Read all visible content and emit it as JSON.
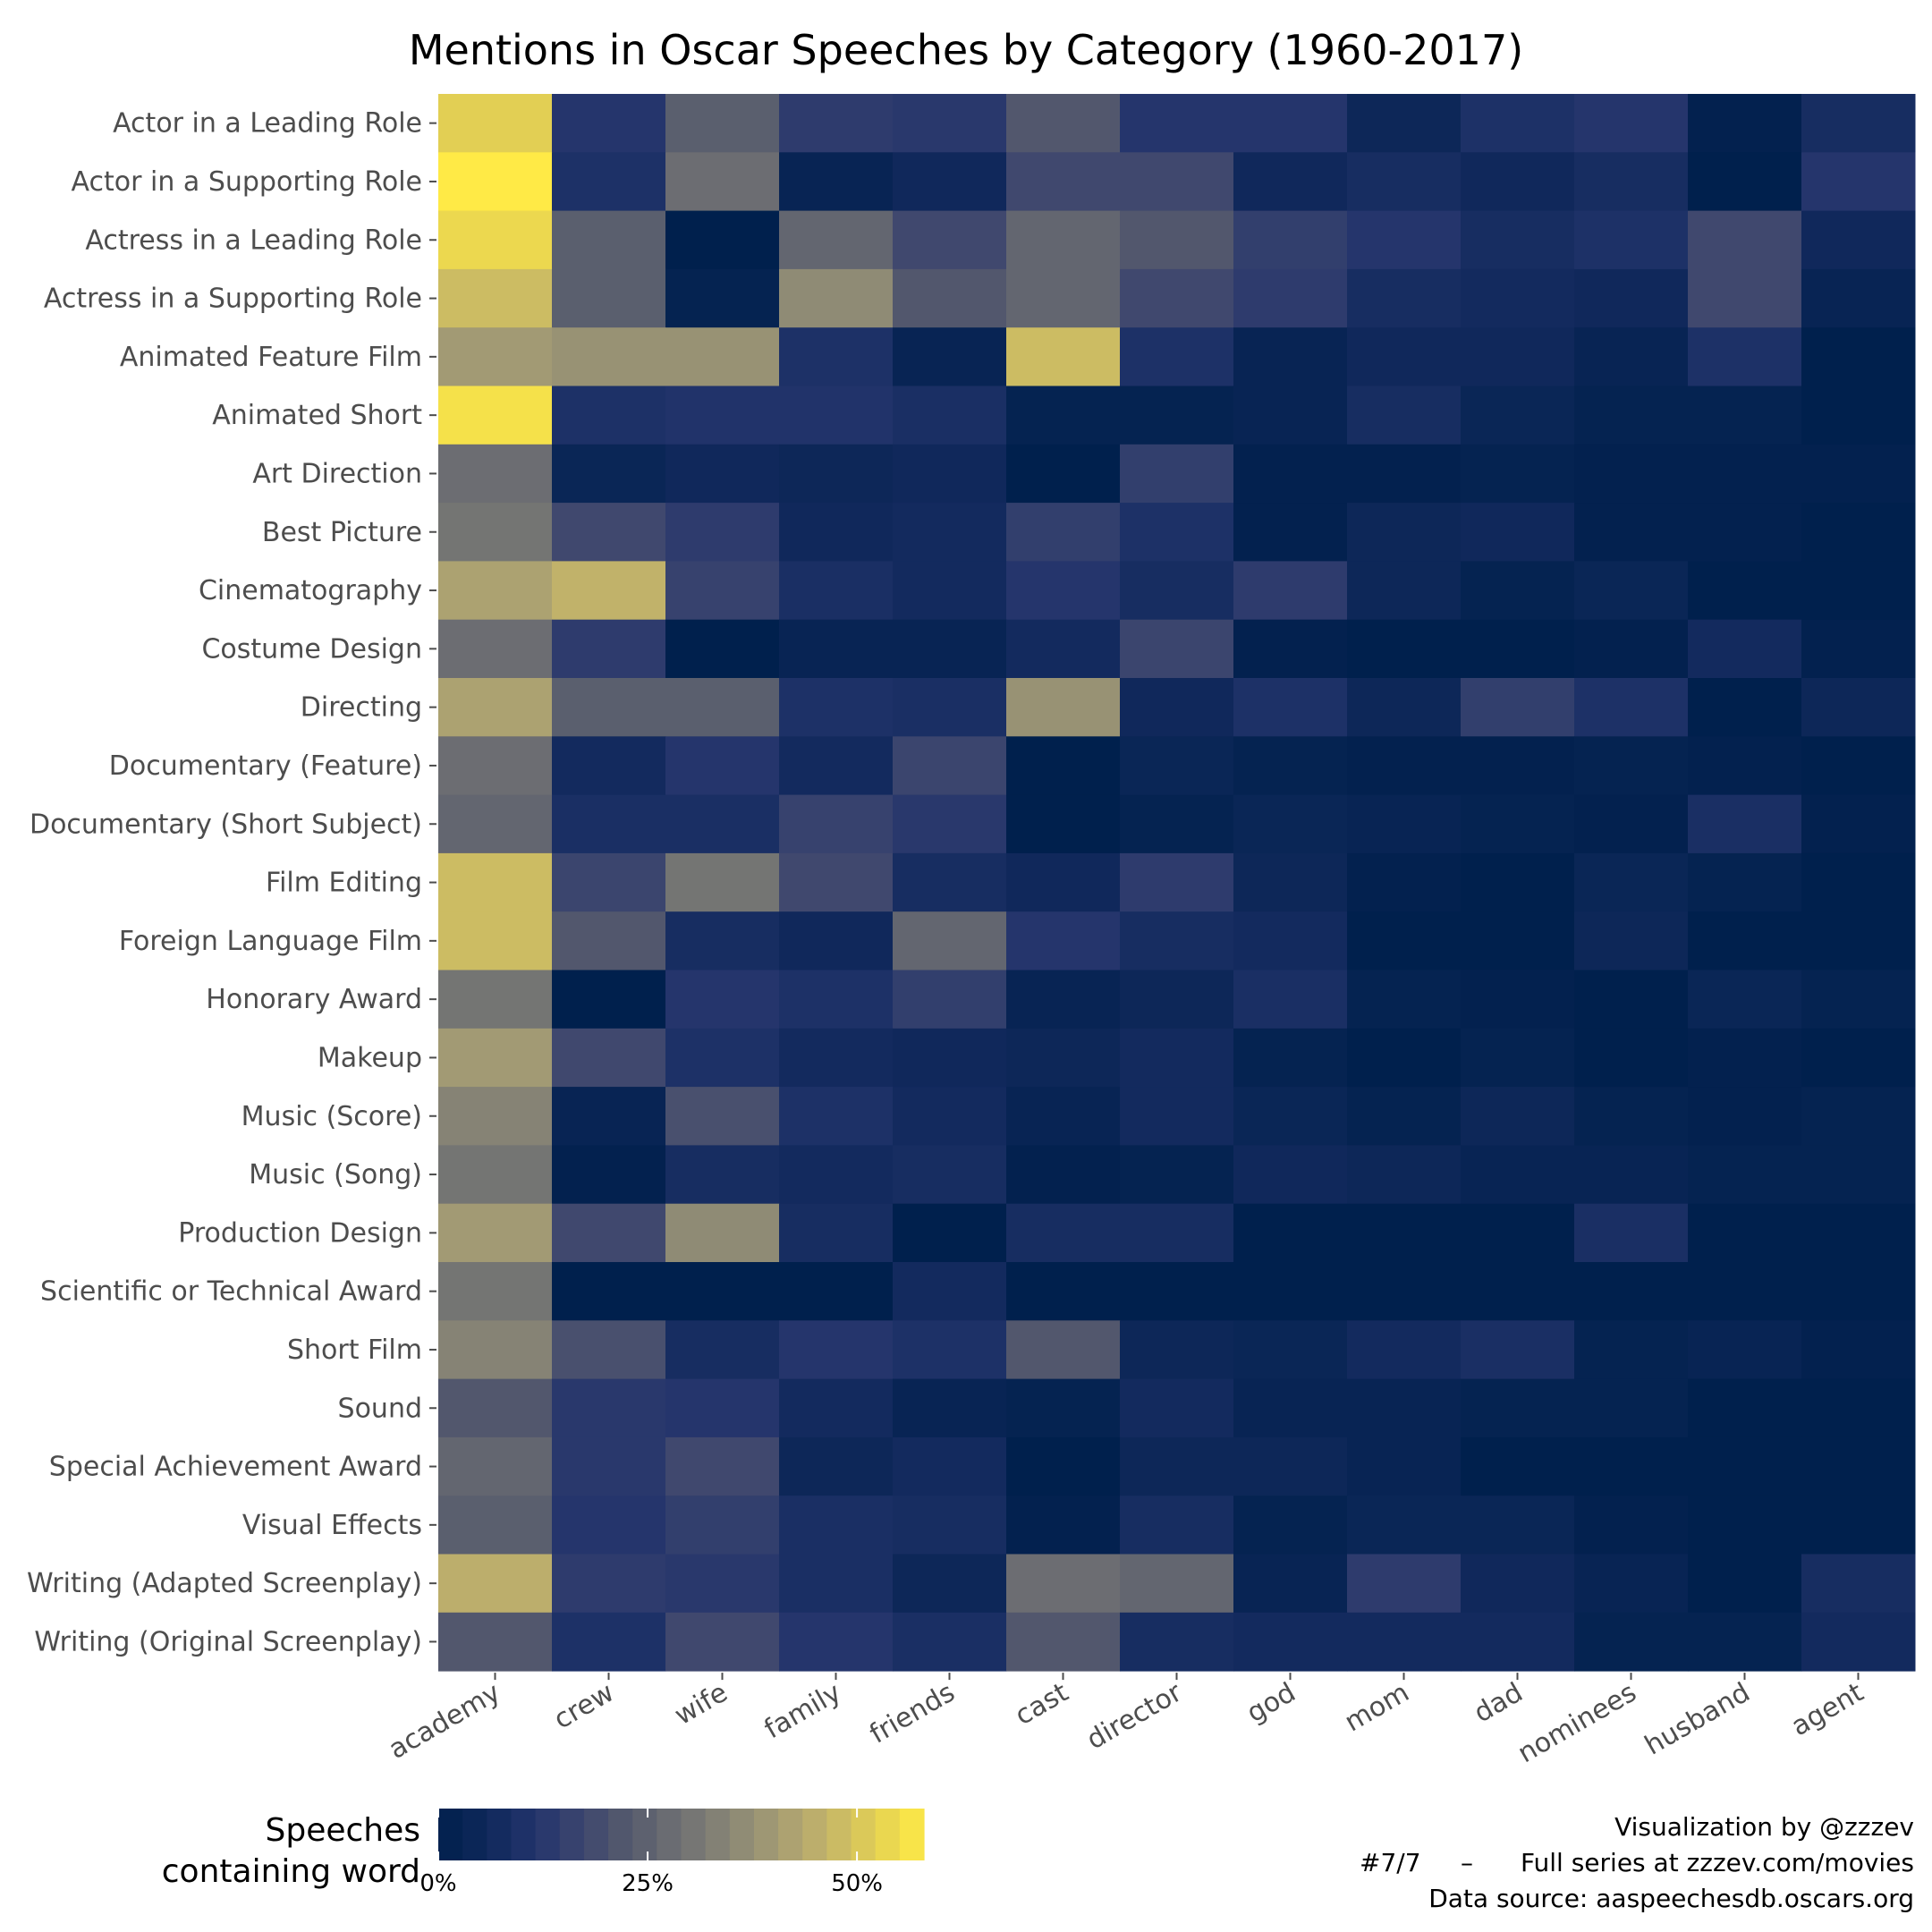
{
  "chart_data": {
    "type": "heatmap",
    "title": "Mentions in Oscar Speeches by Category (1960-2017)",
    "rows": [
      "Actor in a Leading Role",
      "Actor in a Supporting Role",
      "Actress in a Leading Role",
      "Actress in a Supporting Role",
      "Animated Feature Film",
      "Animated Short",
      "Art Direction",
      "Best Picture",
      "Cinematography",
      "Costume Design",
      "Directing",
      "Documentary (Feature)",
      "Documentary (Short Subject)",
      "Film Editing",
      "Foreign Language Film",
      "Honorary Award",
      "Makeup",
      "Music (Score)",
      "Music (Song)",
      "Production Design",
      "Scientific or Technical Award",
      "Short Film",
      "Sound",
      "Special Achievement Award",
      "Visual Effects",
      "Writing (Adapted Screenplay)",
      "Writing (Original Screenplay)"
    ],
    "columns": [
      "academy",
      "crew",
      "wife",
      "family",
      "friends",
      "cast",
      "director",
      "god",
      "mom",
      "dad",
      "nominees",
      "husband",
      "agent"
    ],
    "values": [
      [
        52,
        12,
        24,
        14,
        13,
        22,
        12,
        12,
        5,
        10,
        12,
        1,
        8
      ],
      [
        58,
        10,
        28,
        3,
        6,
        18,
        18,
        6,
        8,
        6,
        8,
        0,
        12
      ],
      [
        54,
        24,
        0,
        26,
        18,
        26,
        22,
        15,
        12,
        8,
        10,
        18,
        6
      ],
      [
        48,
        24,
        2,
        36,
        22,
        26,
        18,
        14,
        8,
        7,
        6,
        18,
        3
      ],
      [
        40,
        38,
        38,
        10,
        3,
        48,
        10,
        3,
        6,
        6,
        3,
        10,
        0
      ],
      [
        56,
        10,
        11,
        11,
        9,
        2,
        2,
        3,
        8,
        4,
        2,
        2,
        0
      ],
      [
        28,
        4,
        6,
        5,
        6,
        0,
        15,
        1,
        1,
        2,
        1,
        1,
        1
      ],
      [
        30,
        18,
        14,
        6,
        7,
        15,
        10,
        1,
        5,
        6,
        1,
        1,
        0
      ],
      [
        42,
        46,
        16,
        9,
        7,
        12,
        8,
        14,
        5,
        2,
        4,
        0,
        0
      ],
      [
        28,
        14,
        0,
        3,
        3,
        7,
        17,
        1,
        0,
        0,
        1,
        7,
        1
      ],
      [
        42,
        24,
        24,
        10,
        9,
        38,
        6,
        10,
        5,
        15,
        10,
        0,
        5
      ],
      [
        28,
        7,
        12,
        7,
        17,
        0,
        4,
        2,
        1,
        1,
        2,
        1,
        0
      ],
      [
        26,
        9,
        9,
        16,
        13,
        0,
        2,
        4,
        3,
        2,
        1,
        9,
        1
      ],
      [
        48,
        17,
        30,
        18,
        8,
        6,
        14,
        5,
        1,
        0,
        4,
        2,
        0
      ],
      [
        48,
        22,
        8,
        6,
        26,
        12,
        8,
        7,
        0,
        0,
        5,
        0,
        0
      ],
      [
        30,
        0,
        12,
        10,
        15,
        3,
        5,
        9,
        2,
        1,
        0,
        4,
        2
      ],
      [
        40,
        18,
        10,
        7,
        6,
        5,
        7,
        2,
        0,
        2,
        0,
        1,
        0
      ],
      [
        34,
        3,
        20,
        10,
        7,
        3,
        7,
        4,
        2,
        5,
        2,
        1,
        2
      ],
      [
        30,
        1,
        8,
        7,
        8,
        1,
        2,
        6,
        5,
        3,
        3,
        2,
        2
      ],
      [
        40,
        18,
        36,
        8,
        0,
        8,
        8,
        0,
        0,
        0,
        9,
        0,
        0
      ],
      [
        30,
        0,
        0,
        0,
        7,
        0,
        0,
        0,
        0,
        0,
        0,
        0,
        0
      ],
      [
        34,
        20,
        8,
        12,
        10,
        22,
        5,
        4,
        7,
        9,
        2,
        3,
        1
      ],
      [
        22,
        13,
        12,
        7,
        3,
        2,
        7,
        3,
        3,
        2,
        2,
        0,
        0
      ],
      [
        26,
        13,
        18,
        5,
        7,
        0,
        5,
        5,
        3,
        0,
        0,
        0,
        0
      ],
      [
        24,
        12,
        15,
        9,
        8,
        1,
        8,
        2,
        4,
        4,
        1,
        0,
        0
      ],
      [
        45,
        14,
        13,
        9,
        5,
        28,
        26,
        3,
        14,
        6,
        3,
        0,
        8
      ],
      [
        22,
        10,
        18,
        12,
        9,
        22,
        8,
        7,
        7,
        7,
        2,
        2,
        7
      ]
    ],
    "colorscale": "cividis",
    "value_range": [
      0,
      58
    ],
    "legend": {
      "title_line1": "Speeches",
      "title_line2": "containing word",
      "ticks": [
        {
          "value": 0,
          "label": "0%"
        },
        {
          "value": 25,
          "label": "25%"
        },
        {
          "value": 50,
          "label": "50%"
        }
      ]
    }
  },
  "credits": {
    "line1": "Visualization by @zzzev",
    "line2a": "#7/7",
    "line2b": "–",
    "line2c": "Full series at zzzev.com/movies",
    "line3": "Data source: aaspeechesdb.oscars.org"
  }
}
